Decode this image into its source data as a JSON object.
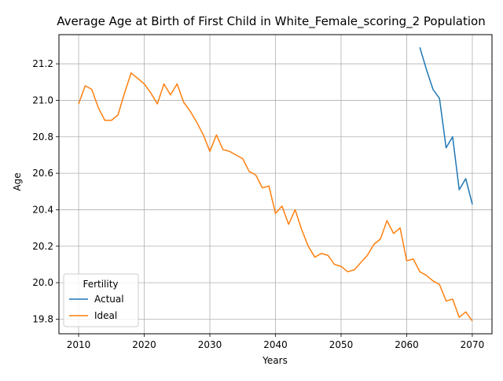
{
  "chart_data": {
    "type": "line",
    "title": "Average Age at Birth of First Child in White_Female_scoring_2 Population",
    "xlabel": "Years",
    "ylabel": "Age",
    "xlim": [
      2007,
      2073
    ],
    "ylim": [
      19.72,
      21.36
    ],
    "x_ticks": [
      2010,
      2020,
      2030,
      2040,
      2050,
      2060,
      2070
    ],
    "y_ticks": [
      19.8,
      20.0,
      20.2,
      20.4,
      20.6,
      20.8,
      21.0,
      21.2
    ],
    "y_tick_labels": [
      "19.8",
      "20.0",
      "20.2",
      "20.4",
      "20.6",
      "20.8",
      "21.0",
      "21.2"
    ],
    "grid": true,
    "legend": {
      "title": "Fertility",
      "placement": "lower-left"
    },
    "series": [
      {
        "name": "Actual",
        "color": "#1f77b4",
        "x": [
          2062,
          2063,
          2064,
          2065,
          2066,
          2067,
          2068,
          2069,
          2070
        ],
        "y": [
          21.29,
          21.17,
          21.06,
          21.01,
          20.74,
          20.8,
          20.51,
          20.57,
          20.43
        ]
      },
      {
        "name": "Ideal",
        "color": "#ff7f0e",
        "x": [
          2010,
          2011,
          2012,
          2013,
          2014,
          2015,
          2016,
          2017,
          2018,
          2019,
          2020,
          2021,
          2022,
          2023,
          2024,
          2025,
          2026,
          2027,
          2028,
          2029,
          2030,
          2031,
          2032,
          2033,
          2034,
          2035,
          2036,
          2037,
          2038,
          2039,
          2040,
          2041,
          2042,
          2043,
          2044,
          2045,
          2046,
          2047,
          2048,
          2049,
          2050,
          2051,
          2052,
          2053,
          2054,
          2055,
          2056,
          2057,
          2058,
          2059,
          2060,
          2061,
          2062,
          2063,
          2064,
          2065,
          2066,
          2067,
          2068,
          2069,
          2070
        ],
        "y": [
          20.98,
          21.08,
          21.06,
          20.96,
          20.89,
          20.89,
          20.92,
          21.04,
          21.15,
          21.12,
          21.09,
          21.04,
          20.98,
          21.09,
          21.03,
          21.09,
          20.99,
          20.94,
          20.88,
          20.81,
          20.72,
          20.81,
          20.73,
          20.72,
          20.7,
          20.68,
          20.61,
          20.59,
          20.52,
          20.53,
          20.38,
          20.42,
          20.32,
          20.4,
          20.29,
          20.2,
          20.14,
          20.16,
          20.15,
          20.1,
          20.09,
          20.06,
          20.07,
          20.11,
          20.15,
          20.21,
          20.24,
          20.34,
          20.27,
          20.3,
          20.12,
          20.13,
          20.06,
          20.04,
          20.01,
          19.99,
          19.9,
          19.91,
          19.81,
          19.84,
          19.79
        ]
      }
    ]
  }
}
